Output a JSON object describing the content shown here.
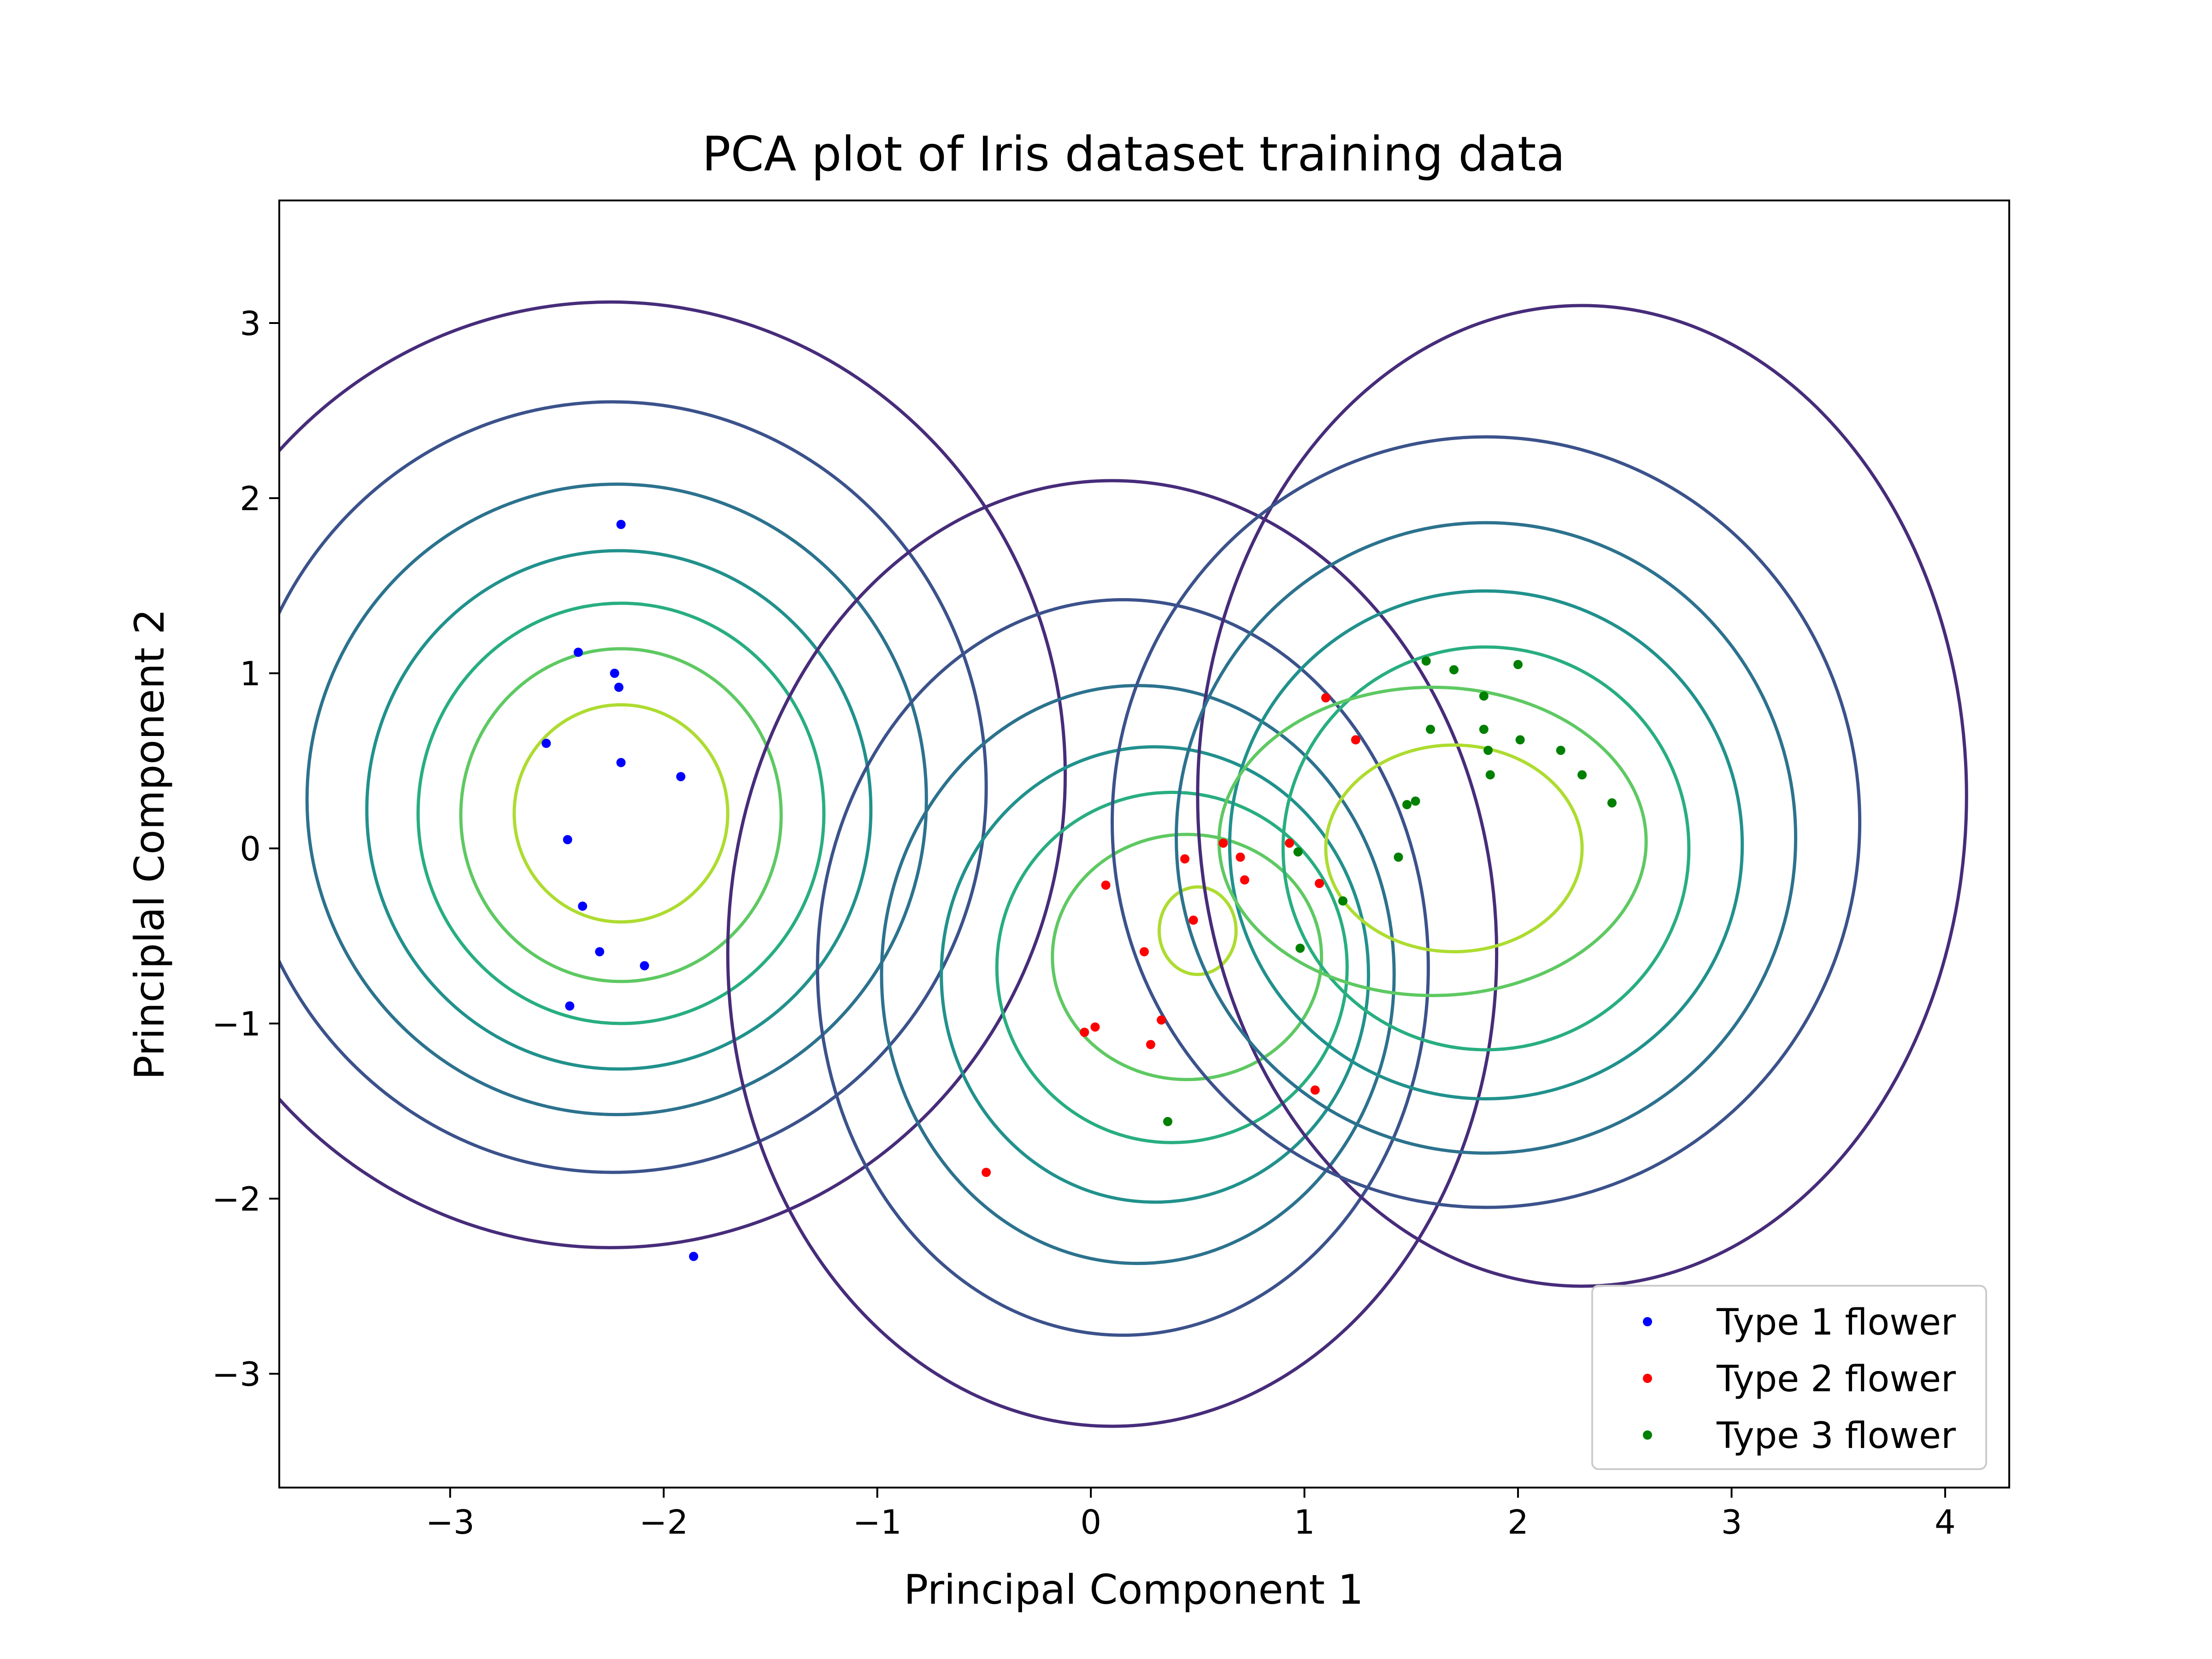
{
  "chart_data": {
    "type": "scatter",
    "title": "PCA plot of Iris dataset training data",
    "xlabel": "Principal Component 1",
    "ylabel": "Principlal Component 2",
    "xlim": [
      -3.8,
      4.3
    ],
    "ylim": [
      -3.65,
      3.7
    ],
    "xticks": [
      -3,
      -2,
      -1,
      0,
      1,
      2,
      3,
      4
    ],
    "xtick_labels": [
      "−3",
      "−2",
      "−1",
      "0",
      "1",
      "2",
      "3",
      "4"
    ],
    "yticks": [
      -3,
      -2,
      -1,
      0,
      1,
      2,
      3
    ],
    "ytick_labels": [
      "−3",
      "−2",
      "−1",
      "0",
      "1",
      "2",
      "3"
    ],
    "grid": false,
    "legend_position": "bottom-right",
    "series": [
      {
        "name": "Type 1 flower",
        "color": "#0000ff",
        "points": [
          [
            -2.2,
            1.85
          ],
          [
            -2.4,
            1.12
          ],
          [
            -2.23,
            1.0
          ],
          [
            -2.21,
            0.92
          ],
          [
            -2.55,
            0.6
          ],
          [
            -2.2,
            0.49
          ],
          [
            -1.92,
            0.41
          ],
          [
            -2.45,
            0.05
          ],
          [
            -2.38,
            -0.33
          ],
          [
            -2.3,
            -0.59
          ],
          [
            -2.09,
            -0.67
          ],
          [
            -2.44,
            -0.9
          ],
          [
            -1.86,
            -2.33
          ]
        ]
      },
      {
        "name": "Type 2 flower",
        "color": "#ff0000",
        "points": [
          [
            1.1,
            0.86
          ],
          [
            1.24,
            0.62
          ],
          [
            0.62,
            0.03
          ],
          [
            0.93,
            0.03
          ],
          [
            0.44,
            -0.06
          ],
          [
            0.7,
            -0.05
          ],
          [
            0.72,
            -0.18
          ],
          [
            1.07,
            -0.2
          ],
          [
            0.07,
            -0.21
          ],
          [
            0.48,
            -0.41
          ],
          [
            0.25,
            -0.59
          ],
          [
            0.33,
            -0.98
          ],
          [
            0.02,
            -1.02
          ],
          [
            -0.03,
            -1.05
          ],
          [
            0.28,
            -1.12
          ],
          [
            1.05,
            -1.38
          ],
          [
            -0.49,
            -1.85
          ]
        ]
      },
      {
        "name": "Type 3 flower",
        "color": "#008000",
        "points": [
          [
            1.57,
            1.07
          ],
          [
            1.7,
            1.02
          ],
          [
            2.0,
            1.05
          ],
          [
            1.84,
            0.87
          ],
          [
            1.59,
            0.68
          ],
          [
            1.84,
            0.68
          ],
          [
            2.01,
            0.62
          ],
          [
            1.86,
            0.56
          ],
          [
            2.2,
            0.56
          ],
          [
            1.87,
            0.42
          ],
          [
            2.3,
            0.42
          ],
          [
            1.48,
            0.25
          ],
          [
            1.52,
            0.27
          ],
          [
            2.44,
            0.26
          ],
          [
            0.97,
            -0.02
          ],
          [
            1.44,
            -0.05
          ],
          [
            1.18,
            -0.3
          ],
          [
            0.98,
            -0.57
          ],
          [
            0.36,
            -1.56
          ]
        ]
      }
    ],
    "contours": {
      "levels": [
        {
          "color": "#472c7a"
        },
        {
          "color": "#3b528b"
        },
        {
          "color": "#2c728e"
        },
        {
          "color": "#21918c"
        },
        {
          "color": "#28ae80"
        },
        {
          "color": "#5ec962"
        },
        {
          "color": "#addc30"
        }
      ],
      "groups": [
        {
          "center": [
            -2.25,
            0.38
          ],
          "rings": [
            {
              "level": 0,
              "cx": -2.25,
              "cy": 0.42,
              "rx": 2.13,
              "ry": 2.7
            },
            {
              "level": 1,
              "cx": -2.24,
              "cy": 0.35,
              "rx": 1.75,
              "ry": 2.2
            },
            {
              "level": 2,
              "cx": -2.22,
              "cy": 0.28,
              "rx": 1.45,
              "ry": 1.8
            },
            {
              "level": 3,
              "cx": -2.21,
              "cy": 0.22,
              "rx": 1.18,
              "ry": 1.48
            },
            {
              "level": 4,
              "cx": -2.2,
              "cy": 0.2,
              "rx": 0.95,
              "ry": 1.2
            },
            {
              "level": 5,
              "cx": -2.2,
              "cy": 0.19,
              "rx": 0.75,
              "ry": 0.95
            },
            {
              "level": 6,
              "cx": -2.2,
              "cy": 0.2,
              "rx": 0.5,
              "ry": 0.62
            }
          ]
        },
        {
          "center": [
            0.35,
            -0.55
          ],
          "rings": [
            {
              "level": 0,
              "cx": 0.1,
              "cy": -0.6,
              "rx": 1.8,
              "ry": 2.7
            },
            {
              "level": 1,
              "cx": 0.15,
              "cy": -0.68,
              "rx": 1.43,
              "ry": 2.1
            },
            {
              "level": 2,
              "cx": 0.22,
              "cy": -0.72,
              "rx": 1.2,
              "ry": 1.65
            },
            {
              "level": 3,
              "cx": 0.3,
              "cy": -0.72,
              "rx": 1.0,
              "ry": 1.3
            },
            {
              "level": 4,
              "cx": 0.38,
              "cy": -0.68,
              "rx": 0.82,
              "ry": 1.0
            },
            {
              "level": 5,
              "cx": 0.45,
              "cy": -0.62,
              "rx": 0.63,
              "ry": 0.7
            },
            {
              "level": 6,
              "cx": 0.5,
              "cy": -0.47,
              "rx": 0.18,
              "ry": 0.25
            }
          ]
        },
        {
          "center": [
            1.7,
            0.0
          ],
          "rings": [
            {
              "level": 0,
              "cx": 2.3,
              "cy": 0.3,
              "rx": 1.8,
              "ry": 2.8
            },
            {
              "level": 1,
              "cx": 1.85,
              "cy": 0.15,
              "rx": 1.75,
              "ry": 2.2
            },
            {
              "level": 2,
              "cx": 1.85,
              "cy": 0.06,
              "rx": 1.45,
              "ry": 1.8
            },
            {
              "level": 3,
              "cx": 1.85,
              "cy": 0.02,
              "rx": 1.2,
              "ry": 1.45
            },
            {
              "level": 4,
              "cx": 1.85,
              "cy": 0.0,
              "rx": 0.95,
              "ry": 1.15
            },
            {
              "level": 5,
              "cx": 1.6,
              "cy": 0.04,
              "rx": 1.0,
              "ry": 0.88
            },
            {
              "level": 6,
              "cx": 1.7,
              "cy": 0.0,
              "rx": 0.6,
              "ry": 0.59
            }
          ]
        }
      ]
    }
  }
}
